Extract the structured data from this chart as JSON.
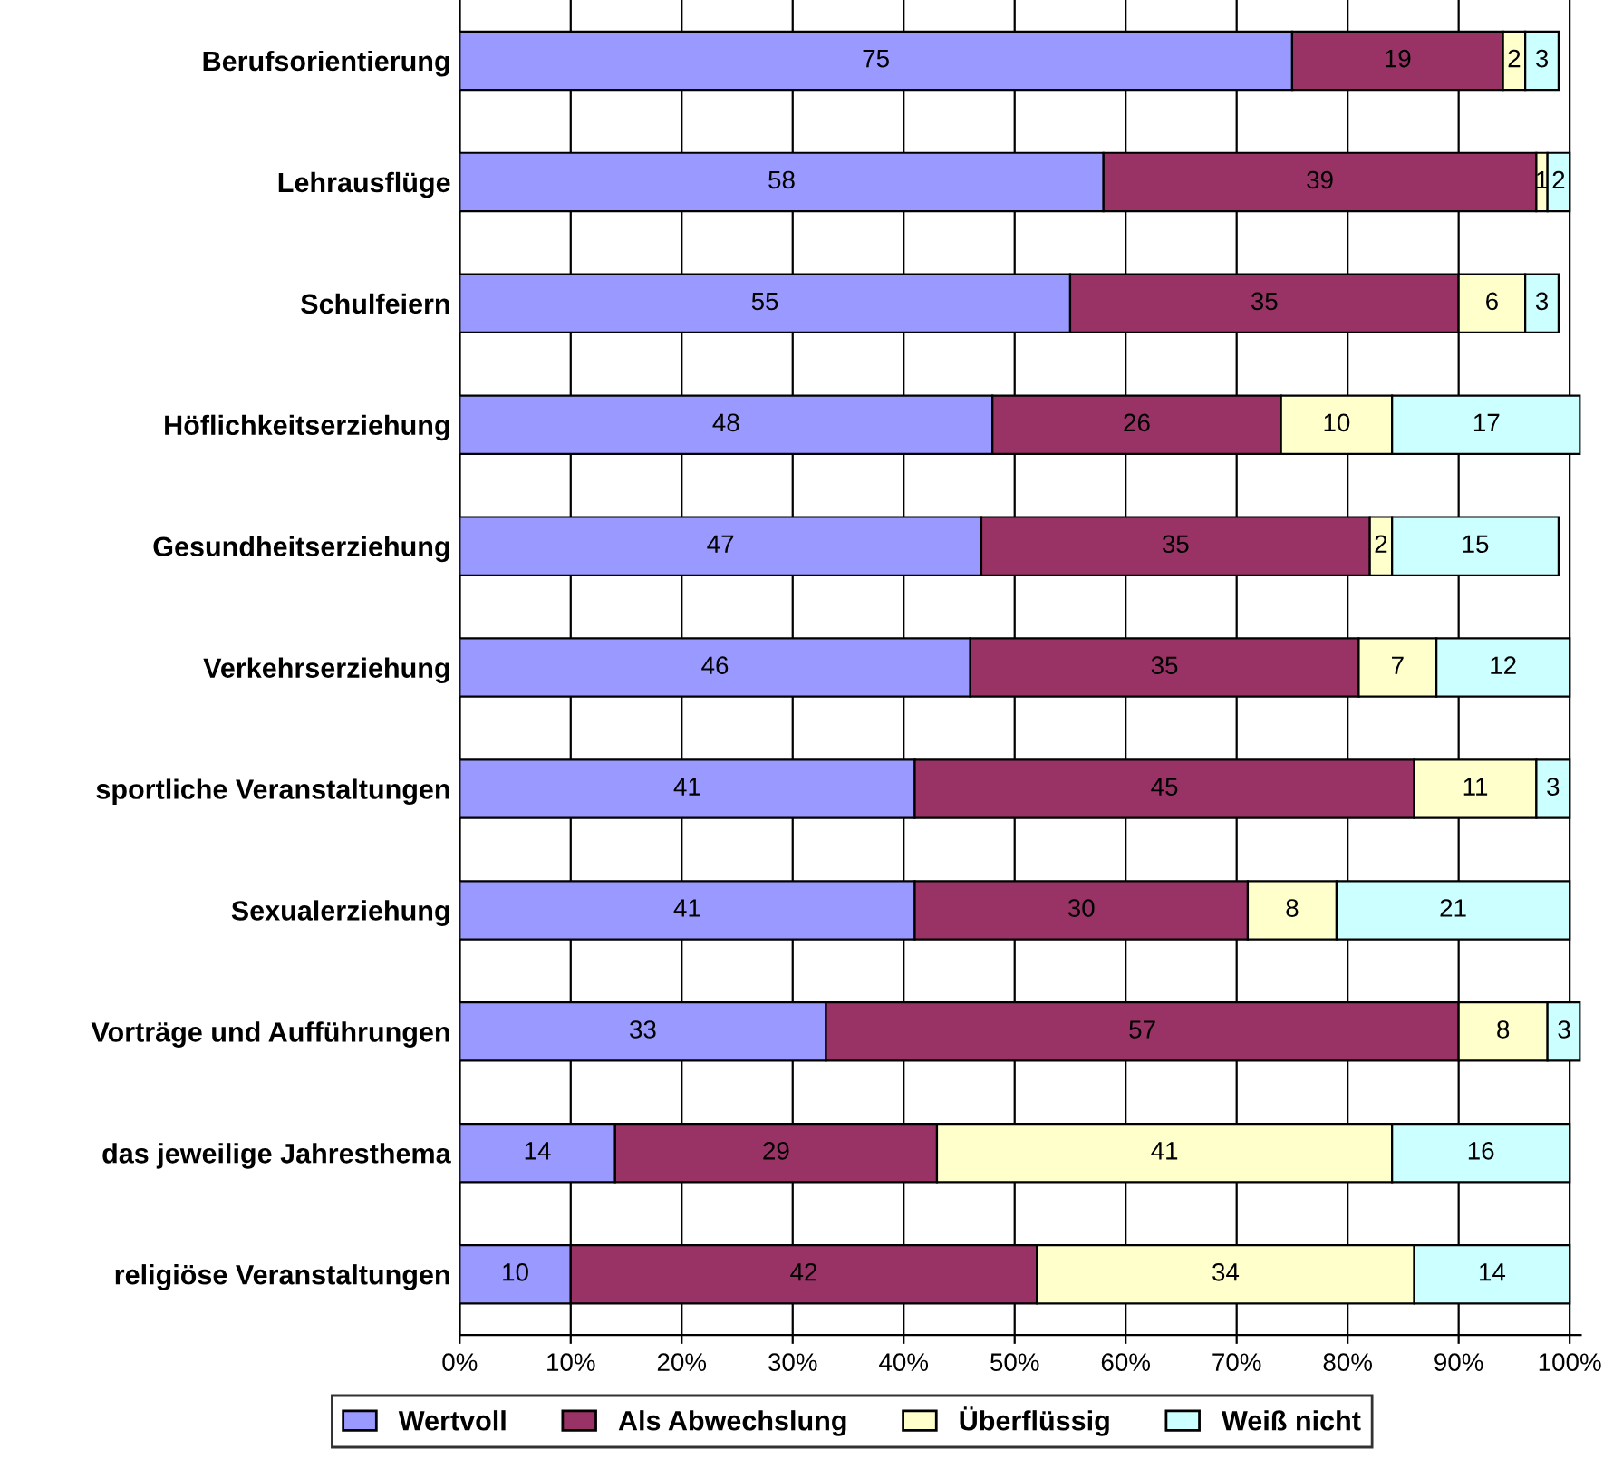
{
  "chart_data": {
    "type": "bar",
    "orientation": "horizontal",
    "stacked": true,
    "data_labels": true,
    "grid": "x",
    "legend": "bottom",
    "categories": [
      "Berufsorientierung",
      "Lehrausflüge",
      "Schulfeiern",
      "Höflichkeitserziehung",
      "Gesundheitserziehung",
      "Verkehrserziehung",
      "sportliche Veranstaltungen",
      "Sexualerziehung",
      "Vorträge und Aufführungen",
      "das jeweilige Jahresthema",
      "religiöse Veranstaltungen"
    ],
    "series": [
      {
        "name": "Wertvoll",
        "color": "#9999ff",
        "values": [
          75,
          58,
          55,
          48,
          47,
          46,
          41,
          41,
          33,
          14,
          10
        ]
      },
      {
        "name": "Als Abwechslung",
        "color": "#993366",
        "values": [
          19,
          39,
          35,
          26,
          35,
          35,
          45,
          30,
          57,
          29,
          42
        ]
      },
      {
        "name": "Überflüssig",
        "color": "#ffffcc",
        "values": [
          2,
          1,
          6,
          10,
          2,
          7,
          11,
          8,
          8,
          41,
          34
        ]
      },
      {
        "name": "Weiß nicht",
        "color": "#ccffff",
        "values": [
          3,
          2,
          3,
          17,
          15,
          12,
          3,
          21,
          3,
          16,
          14
        ]
      }
    ],
    "xlim": [
      0,
      101
    ],
    "xticks": [
      {
        "value": 0,
        "label": "0%"
      },
      {
        "value": 10,
        "label": "10%"
      },
      {
        "value": 20,
        "label": "20%"
      },
      {
        "value": 30,
        "label": "30%"
      },
      {
        "value": 40,
        "label": "40%"
      },
      {
        "value": 50,
        "label": "50%"
      },
      {
        "value": 60,
        "label": "60%"
      },
      {
        "value": 70,
        "label": "70%"
      },
      {
        "value": 80,
        "label": "80%"
      },
      {
        "value": 90,
        "label": "90%"
      },
      {
        "value": 100,
        "label": "100%"
      }
    ]
  }
}
